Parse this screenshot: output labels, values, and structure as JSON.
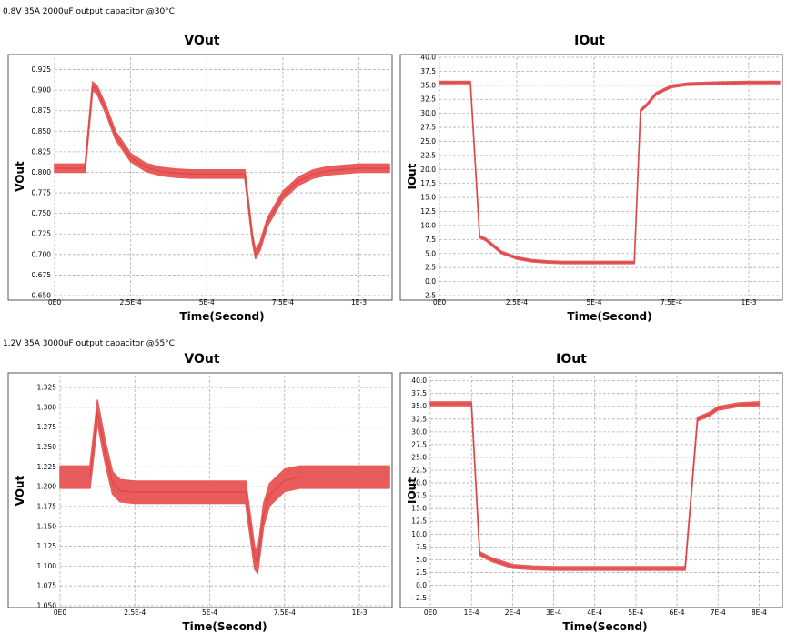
{
  "captions": {
    "top": "0.8V 35A 2000uF output capacitor @30°C",
    "bottom": "1.2V 35A 3000uF output capacitor @55°C"
  },
  "colors": {
    "trace": "#e85c5c",
    "grid": "#b0b0b0",
    "frame": "#555555"
  },
  "chart_data": [
    {
      "type": "line",
      "title": "VOut",
      "xlabel": "Time(Second)",
      "ylabel": "VOut",
      "xlim": [
        0,
        0.0011
      ],
      "ylim": [
        0.65,
        0.94
      ],
      "xticks": [
        0,
        0.00025,
        0.0005,
        0.00075,
        0.001
      ],
      "xtick_labels": [
        "0E0",
        "2.5E-4",
        "5E-4",
        "7.5E-4",
        "1E-3"
      ],
      "yticks": [
        0.65,
        0.675,
        0.7,
        0.725,
        0.75,
        0.775,
        0.8,
        0.825,
        0.85,
        0.875,
        0.9,
        0.925
      ],
      "ytick_labels": [
        "0.650",
        "0.675",
        "0.700",
        "0.725",
        "0.750",
        "0.775",
        "0.800",
        "0.825",
        "0.850",
        "0.875",
        "0.900",
        "0.925"
      ],
      "grid": true,
      "ripple": 0.01,
      "x": [
        0,
        0.0001,
        0.000125,
        0.00014,
        0.00017,
        0.0002,
        0.00025,
        0.0003,
        0.00035,
        0.0004,
        0.00045,
        0.0005,
        0.00055,
        0.0006,
        0.000625,
        0.00065,
        0.00066,
        0.000675,
        0.0007,
        0.00075,
        0.0008,
        0.00085,
        0.0009,
        0.001,
        0.0011
      ],
      "y": [
        0.805,
        0.805,
        0.905,
        0.9,
        0.875,
        0.845,
        0.818,
        0.806,
        0.801,
        0.799,
        0.798,
        0.798,
        0.798,
        0.798,
        0.798,
        0.72,
        0.7,
        0.71,
        0.74,
        0.772,
        0.789,
        0.798,
        0.802,
        0.805,
        0.805
      ]
    },
    {
      "type": "line",
      "title": "IOut",
      "xlabel": "Time(Second)",
      "ylabel": "IOut",
      "xlim": [
        0,
        0.0011
      ],
      "ylim": [
        -2.5,
        40
      ],
      "xticks": [
        0,
        0.00025,
        0.0005,
        0.00075,
        0.001
      ],
      "xtick_labels": [
        "0E0",
        "2.5E-4",
        "5E-4",
        "7.5E-4",
        "1E-3"
      ],
      "yticks": [
        -2.5,
        0,
        2.5,
        5,
        7.5,
        10,
        12.5,
        15,
        17.5,
        20,
        22.5,
        25,
        27.5,
        30,
        32.5,
        35,
        37.5,
        40
      ],
      "ytick_labels": [
        "- 2.5",
        "0.0",
        "2.5",
        "5.0",
        "7.5",
        "10.0",
        "12.5",
        "15.0",
        "17.5",
        "20.0",
        "22.5",
        "25.0",
        "27.5",
        "30.0",
        "32.5",
        "35.0",
        "37.5",
        "40.0"
      ],
      "grid": true,
      "ripple": 0.4,
      "x": [
        0,
        0.0001,
        0.00013,
        0.00015,
        0.0002,
        0.00025,
        0.0003,
        0.00035,
        0.0004,
        0.0005,
        0.0006,
        0.00063,
        0.00065,
        0.00067,
        0.0007,
        0.00075,
        0.0008,
        0.0009,
        0.001,
        0.0011
      ],
      "y": [
        35.5,
        35.5,
        8,
        7.5,
        5.2,
        4.2,
        3.7,
        3.5,
        3.4,
        3.4,
        3.4,
        3.4,
        30.5,
        31.5,
        33.5,
        34.8,
        35.2,
        35.4,
        35.5,
        35.5
      ]
    },
    {
      "type": "line",
      "title": "VOut",
      "xlabel": "Time(Second)",
      "ylabel": "VOut",
      "xlim": [
        0,
        0.0011
      ],
      "ylim": [
        1.05,
        1.34
      ],
      "xticks": [
        0,
        0.00025,
        0.0005,
        0.00075,
        0.001
      ],
      "xtick_labels": [
        "0E0",
        "2.5E-4",
        "5E-4",
        "7.5E-4",
        "1E-3"
      ],
      "yticks": [
        1.05,
        1.075,
        1.1,
        1.125,
        1.15,
        1.175,
        1.2,
        1.225,
        1.25,
        1.275,
        1.3,
        1.325
      ],
      "ytick_labels": [
        "1.050",
        "1.075",
        "1.100",
        "1.125",
        "1.150",
        "1.175",
        "1.200",
        "1.225",
        "1.250",
        "1.275",
        "1.300",
        "1.325"
      ],
      "grid": true,
      "ripple": 0.028,
      "x": [
        0,
        0.0001,
        0.000125,
        0.00015,
        0.000175,
        0.0002,
        0.00025,
        0.0003,
        0.0004,
        0.0005,
        0.0006,
        0.00062,
        0.00065,
        0.00066,
        0.00068,
        0.0007,
        0.00075,
        0.0008,
        0.0009,
        0.0011
      ],
      "y": [
        1.212,
        1.212,
        1.295,
        1.245,
        1.205,
        1.195,
        1.193,
        1.193,
        1.193,
        1.193,
        1.193,
        1.193,
        1.11,
        1.105,
        1.165,
        1.19,
        1.208,
        1.212,
        1.212,
        1.212
      ]
    },
    {
      "type": "line",
      "title": "IOut",
      "xlabel": "Time(Second)",
      "ylabel": "IOut",
      "xlim": [
        0,
        0.00085
      ],
      "ylim": [
        -4,
        41
      ],
      "xticks": [
        0,
        0.0001,
        0.0002,
        0.0003,
        0.0004,
        0.0005,
        0.0006,
        0.0007,
        0.0008
      ],
      "xtick_labels": [
        "0E0",
        "1E-4",
        "2E-4",
        "3E-4",
        "4E-4",
        "5E-4",
        "6E-4",
        "7E-4",
        "8E-4"
      ],
      "yticks": [
        -2.5,
        0,
        2.5,
        5,
        7.5,
        10,
        12.5,
        15,
        17.5,
        20,
        22.5,
        25,
        27.5,
        30,
        32.5,
        35,
        37.5,
        40
      ],
      "ytick_labels": [
        "- 2.5",
        "0.0",
        "2.5",
        "5.0",
        "7.5",
        "10.0",
        "12.5",
        "15.0",
        "17.5",
        "20.0",
        "22.5",
        "25.0",
        "27.5",
        "30.0",
        "32.5",
        "35.0",
        "37.5",
        "40.0"
      ],
      "grid": true,
      "ripple": 0.7,
      "x": [
        0,
        0.0001,
        0.00012,
        0.00015,
        0.0002,
        0.00025,
        0.0003,
        0.0004,
        0.0005,
        0.0006,
        0.00062,
        0.00065,
        0.00068,
        0.0007,
        0.00075,
        0.0008
      ],
      "y": [
        35.5,
        35.5,
        6.2,
        5.0,
        3.7,
        3.4,
        3.3,
        3.3,
        3.3,
        3.3,
        3.3,
        32.5,
        33.5,
        34.6,
        35.3,
        35.5
      ]
    }
  ]
}
